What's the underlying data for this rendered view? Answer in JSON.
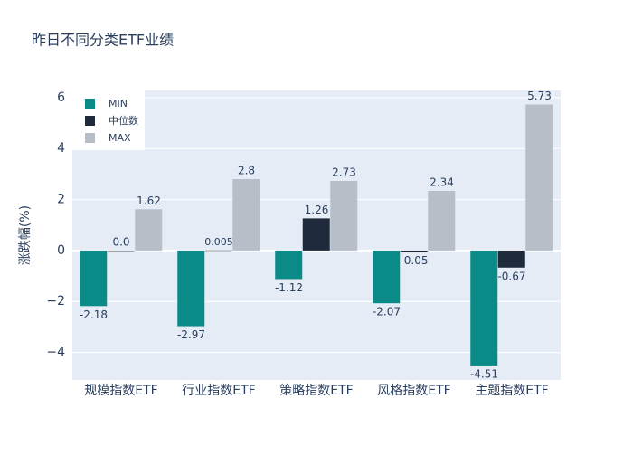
{
  "chart_data": {
    "type": "bar",
    "title": "昨日不同分类ETF业绩",
    "y_label": "涨跌幅(%)",
    "categories": [
      "规模指数ETF",
      "行业指数ETF",
      "策略指数ETF",
      "风格指数ETF",
      "主题指数ETF"
    ],
    "series": [
      {
        "name": "MIN",
        "color": "#0b8b87",
        "values": [
          -2.18,
          -2.97,
          -1.12,
          -2.07,
          -4.51
        ]
      },
      {
        "name": "中位数",
        "color": "#1f2a3d",
        "values": [
          0,
          0.005,
          1.26,
          -0.05,
          -0.67
        ],
        "value_labels": [
          "0.0",
          "0.005",
          "1.26",
          "-0.05",
          "-0.67"
        ]
      },
      {
        "name": "MAX",
        "color": "#b7bec7",
        "values": [
          1.62,
          2.8,
          2.73,
          2.34,
          5.73
        ]
      }
    ],
    "ylim": [
      -5.08,
      6.28
    ],
    "yticks": [
      {
        "value": -4,
        "label": "−4"
      },
      {
        "value": -2,
        "label": "−2"
      },
      0,
      2,
      4,
      6
    ],
    "grid": true,
    "legend": "top-left"
  }
}
